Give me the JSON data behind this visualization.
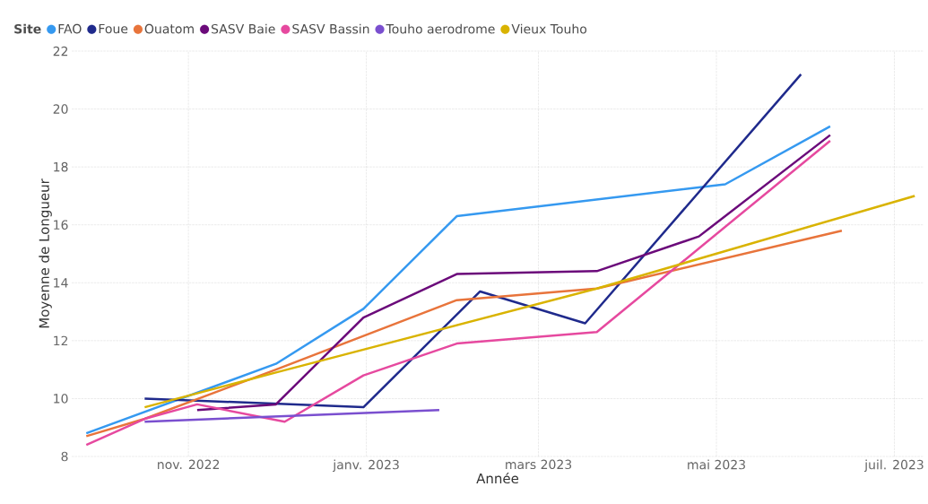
{
  "chart_data": {
    "type": "line",
    "xlabel": "Année",
    "ylabel": "Moyenne de Longueur",
    "legend_title": "Site",
    "legend": "top left",
    "grid": true,
    "xlim": [
      "2022-09-22",
      "2023-07-11"
    ],
    "ylim": [
      8,
      22
    ],
    "yticks": [
      8,
      10,
      12,
      14,
      16,
      18,
      20,
      22
    ],
    "xticks": [
      {
        "value": "2022-11-01",
        "label": "nov. 2022"
      },
      {
        "value": "2023-01-01",
        "label": "janv. 2023"
      },
      {
        "value": "2023-03-01",
        "label": "mars 2023"
      },
      {
        "value": "2023-05-01",
        "label": "mai 2023"
      },
      {
        "value": "2023-07-01",
        "label": "juil. 2023"
      }
    ],
    "series": [
      {
        "name": "FAO",
        "color": "#3599f0",
        "x": [
          "2022-09-27",
          "2022-12-01",
          "2022-12-31",
          "2023-02-01",
          "2023-05-04",
          "2023-06-09"
        ],
        "values": [
          8.8,
          11.2,
          13.1,
          16.3,
          17.4,
          19.4
        ]
      },
      {
        "name": "Foue",
        "color": "#1f2a8c",
        "x": [
          "2022-10-17",
          "2022-12-31",
          "2023-02-09",
          "2023-03-17",
          "2023-05-30"
        ],
        "values": [
          10.0,
          9.7,
          13.7,
          12.6,
          21.2
        ]
      },
      {
        "name": "Ouatom",
        "color": "#e8743b",
        "x": [
          "2022-09-27",
          "2022-10-17",
          "2022-12-01",
          "2023-02-01",
          "2023-03-21",
          "2023-06-13"
        ],
        "values": [
          8.7,
          9.3,
          11.0,
          13.4,
          13.8,
          15.8
        ]
      },
      {
        "name": "SASV Baie",
        "color": "#6b0a7a",
        "x": [
          "2022-11-04",
          "2022-12-01",
          "2022-12-31",
          "2023-02-01",
          "2023-03-21",
          "2023-04-25",
          "2023-06-09"
        ],
        "values": [
          9.6,
          9.8,
          12.8,
          14.3,
          14.4,
          15.6,
          19.1
        ]
      },
      {
        "name": "SASV Bassin",
        "color": "#e6499f",
        "x": [
          "2022-09-27",
          "2022-10-17",
          "2022-11-04",
          "2022-12-04",
          "2022-12-31",
          "2023-02-01",
          "2023-03-21",
          "2023-06-09"
        ],
        "values": [
          8.4,
          9.3,
          9.8,
          9.2,
          10.8,
          11.9,
          12.3,
          18.9
        ]
      },
      {
        "name": "Touho aerodrome",
        "color": "#7a4fcf",
        "x": [
          "2022-10-17",
          "2023-01-26"
        ],
        "values": [
          9.2,
          9.6
        ]
      },
      {
        "name": "Vieux Touho",
        "color": "#d9b300",
        "x": [
          "2022-10-17",
          "2022-12-01",
          "2023-03-21",
          "2023-07-08"
        ],
        "values": [
          9.7,
          10.9,
          13.8,
          17.0
        ]
      }
    ]
  }
}
